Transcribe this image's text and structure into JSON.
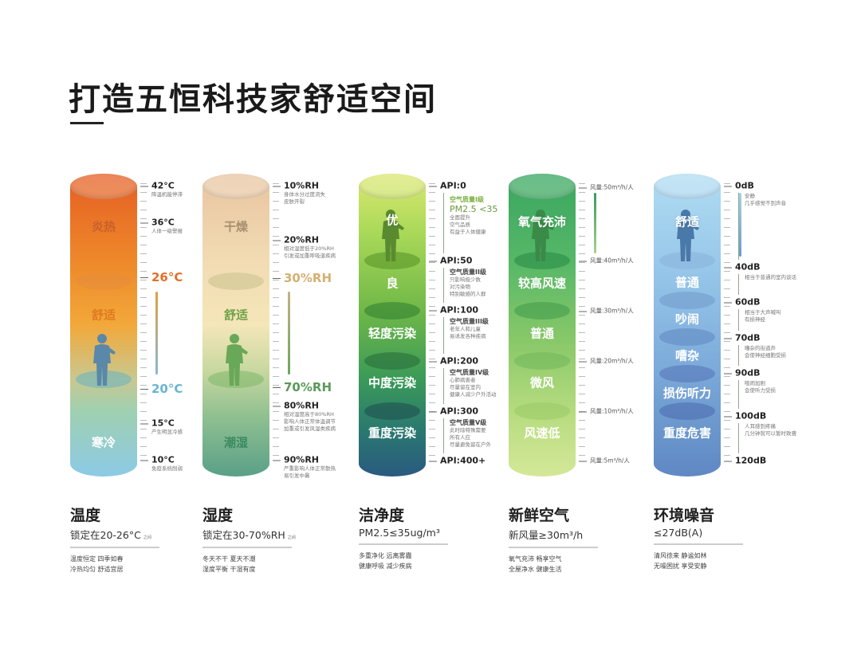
{
  "title": "打造五恒科技家舒适空间",
  "columns": [
    {
      "name": "temperature",
      "cyl_labels": [
        "炎热",
        "舒适",
        "寒冷"
      ],
      "scale": [
        {
          "label": "42°C",
          "note": [
            "降温机能停滞"
          ]
        },
        {
          "label": "36°C",
          "note": [
            "人体一级警报"
          ]
        },
        {
          "label": "26°C"
        },
        {
          "label": "20°C"
        },
        {
          "label": "15°C",
          "note": [
            "产生明显冷感"
          ]
        },
        {
          "label": "10°C",
          "note": [
            "免疫系统削弱"
          ]
        }
      ],
      "footer": {
        "title": "温度",
        "subtitle": "锁定在20-26°C",
        "small": "之间",
        "desc": [
          "温度恒定  四季如春",
          "冷热均匀  舒适宜居"
        ]
      }
    },
    {
      "name": "humidity",
      "cyl_labels": [
        "干燥",
        "舒适",
        "潮湿"
      ],
      "scale": [
        {
          "label": "10%RH",
          "note": [
            "身体水分过度流失",
            "皮肤开裂"
          ]
        },
        {
          "label": "20%RH",
          "note": [
            "相对湿度低于20%RH",
            "引发或加重呼吸道疾病"
          ]
        },
        {
          "label": "30%RH"
        },
        {
          "label": "70%RH"
        },
        {
          "label": "80%RH",
          "note": [
            "相对湿度高于80%RH",
            "影响人体正常体温调节",
            "加重或引发风湿类疾病"
          ]
        },
        {
          "label": "90%RH",
          "note": [
            "严重影响人体正常散热",
            "易引发中暑"
          ]
        }
      ],
      "footer": {
        "title": "湿度",
        "subtitle": "锁定在30-70%RH",
        "small": "之间",
        "desc": [
          "冬天不干  夏天不潮",
          "湿度平衡  干湿有度"
        ]
      }
    },
    {
      "name": "cleanliness",
      "cyl_labels": [
        "优",
        "良",
        "轻度污染",
        "中度污染",
        "重度污染"
      ],
      "scale": [
        {
          "label": "API:0",
          "note_title": "空气质量I级",
          "pm": "PM2.5 <35",
          "note": [
            "全面提升",
            "空气品质",
            "有益于人体健康"
          ]
        },
        {
          "label": "API:50",
          "note_title": "空气质量II级",
          "note": [
            "只影响极少数",
            "对污染物",
            "特别敏感的人群"
          ]
        },
        {
          "label": "API:100",
          "note_title": "空气质量III级",
          "note": [
            "老年人和儿童",
            "易诱发各种疾病"
          ]
        },
        {
          "label": "API:200",
          "note_title": "空气质量IV级",
          "note": [
            "心肺病患者",
            "尽量留在室内",
            "健康人减少户外活动"
          ]
        },
        {
          "label": "API:300",
          "note_title": "空气质量V级",
          "note": [
            "此时除特殊需要",
            "所有人应",
            "尽量避免留在户外"
          ]
        },
        {
          "label": "API:400+"
        }
      ],
      "footer": {
        "title": "洁净度",
        "subtitle": "PM2.5≤35ug/m³",
        "desc": [
          "多重净化  远离雾霾",
          "健康呼吸  减少疾病"
        ]
      }
    },
    {
      "name": "fresh-air",
      "cyl_labels": [
        "氧气充沛",
        "较高风速",
        "普通",
        "微风",
        "风速低"
      ],
      "scale": [
        {
          "label": "风量:50m³/h/人"
        },
        {
          "label": "风量:40m³/h/人"
        },
        {
          "label": "风量:30m³/h/人"
        },
        {
          "label": "风量:20m³/h/人"
        },
        {
          "label": "风量:10m³/h/人"
        },
        {
          "label": "风量:5m³/h/人"
        }
      ],
      "footer": {
        "title": "新鲜空气",
        "subtitle": "新风量≥30m³/h",
        "desc": [
          "氧气充沛  畅享空气",
          "全屋净水  健康生活"
        ]
      }
    },
    {
      "name": "noise",
      "cyl_labels": [
        "舒适",
        "普通",
        "吵闹",
        "嘈杂",
        "损伤听力",
        "重度危害"
      ],
      "scale": [
        {
          "label": "0dB",
          "note": [
            "安静",
            "几乎感觉不到声音"
          ]
        },
        {
          "label": "40dB",
          "note": [
            "相当于普通的室内谈话"
          ]
        },
        {
          "label": "60dB",
          "note": [
            "相当于大声喊叫",
            "有损神经"
          ]
        },
        {
          "label": "70dB",
          "note": [
            "嘈杂的街道声",
            "会使神经细胞受损"
          ]
        },
        {
          "label": "90dB",
          "note": [
            "喧闹加剧",
            "会使听力受损"
          ]
        },
        {
          "label": "100dB",
          "note": [
            "人耳感到疼痛",
            "几分钟就可以暂时致聋"
          ]
        },
        {
          "label": "120dB"
        }
      ],
      "footer": {
        "title": "环境噪音",
        "subtitle": "≤27dB(A)",
        "desc": [
          "清风徐来  静谧如林",
          "无噪困扰  享受安静"
        ]
      }
    }
  ]
}
